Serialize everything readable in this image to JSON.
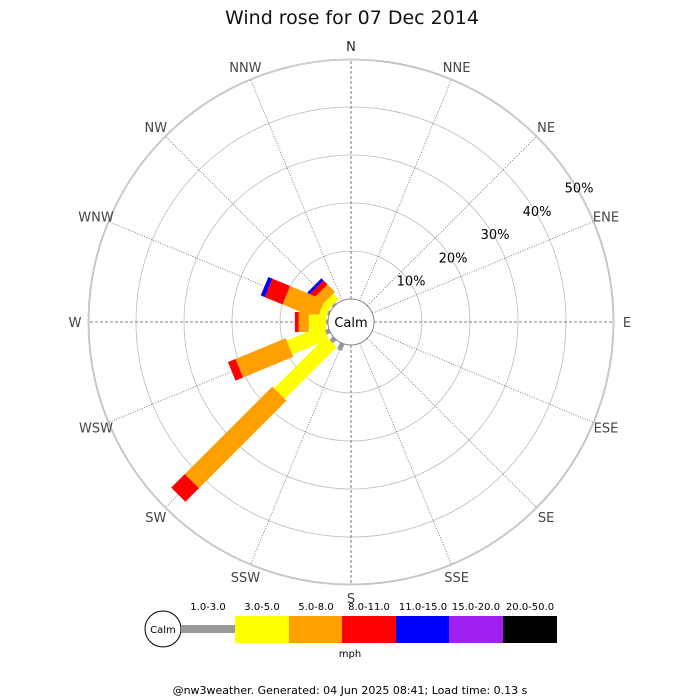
{
  "chart_data": {
    "type": "wind-rose",
    "title": "Wind rose for 07 Dec 2014",
    "directions": [
      "N",
      "NNE",
      "NE",
      "ENE",
      "E",
      "ESE",
      "SE",
      "SSE",
      "S",
      "SSW",
      "SW",
      "WSW",
      "W",
      "WNW",
      "NW",
      "NNW"
    ],
    "ring_labels": [
      "10%",
      "20%",
      "30%",
      "40%",
      "50%"
    ],
    "ring_values": [
      10,
      20,
      30,
      40,
      50
    ],
    "calm_label": "Calm",
    "speed_unit": "mph",
    "speed_bins": [
      {
        "label": "1.0-3.0",
        "color": "#999999"
      },
      {
        "label": "3.0-5.0",
        "color": "#ffff00"
      },
      {
        "label": "5.0-8.0",
        "color": "#ff9f00"
      },
      {
        "label": "8.0-11.0",
        "color": "#ff0000"
      },
      {
        "label": "11.0-15.0",
        "color": "#0000ff"
      },
      {
        "label": "15.0-20.0",
        "color": "#a020f0"
      },
      {
        "label": "20.0-50.0",
        "color": "#000000"
      }
    ],
    "series": [
      {
        "direction": "NW",
        "values": [
          0.4,
          1.6,
          2.2,
          1.2,
          0.6,
          0,
          0
        ]
      },
      {
        "direction": "WNW",
        "values": [
          0.4,
          1.6,
          7.8,
          4.0,
          0.9,
          0,
          0
        ]
      },
      {
        "direction": "W",
        "values": [
          0.4,
          3.6,
          2.1,
          0.8,
          0,
          0,
          0
        ]
      },
      {
        "direction": "WSW",
        "values": [
          0.9,
          8.2,
          11.3,
          1.7,
          0,
          0,
          0
        ]
      },
      {
        "direction": "SW",
        "values": [
          1.0,
          15.3,
          25.8,
          4.0,
          0,
          0,
          0
        ]
      },
      {
        "direction": "SSW",
        "values": [
          1.5,
          0,
          0,
          0,
          0,
          0,
          0
        ]
      }
    ],
    "grid": true,
    "legend_position": "bottom"
  },
  "footer": "@nw3weather. Generated: 04 Jun 2025 08:41; Load time: 0.13 s"
}
